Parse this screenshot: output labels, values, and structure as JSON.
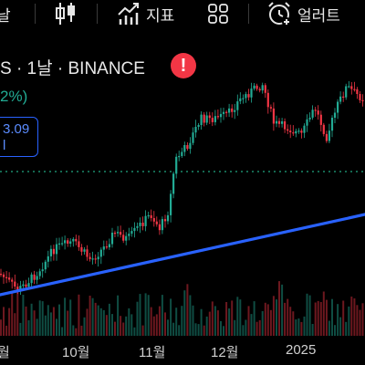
{
  "toolbar": {
    "interval_partial": "날",
    "indicators_label": "지표",
    "alerts_label": "얼러트",
    "icons": [
      "candlestick-icon",
      "indicators-icon",
      "layout-grid-icon",
      "alarm-clock-icon"
    ]
  },
  "symbol": {
    "title_partial": "S · 1날 · BINANCE",
    "change_partial": "2%)",
    "price_box_top": "3.09",
    "price_box_bottom": "l"
  },
  "colors": {
    "up": "#22ab94",
    "down": "#f23645",
    "trendline": "#2962ff",
    "dotted_line": "#1b8a6b",
    "background": "#000000"
  },
  "chart_data": {
    "type": "candlestick",
    "x_tick_labels": [
      "월",
      "10월",
      "11월",
      "12월",
      "2025"
    ],
    "trendline": "rising",
    "volume_bars": true
  }
}
